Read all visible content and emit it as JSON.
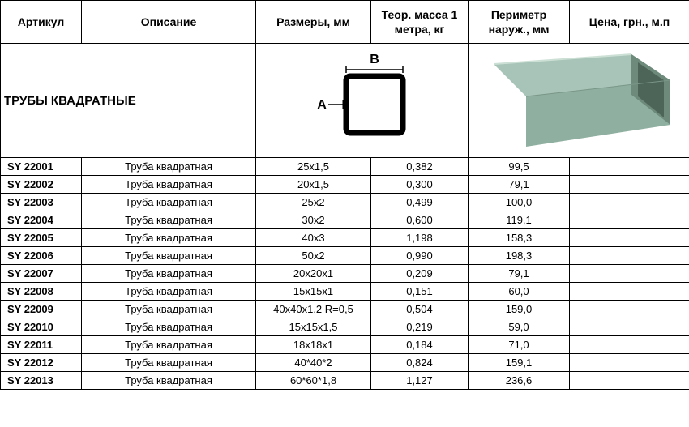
{
  "headers": {
    "article": "Артикул",
    "description": "Описание",
    "sizes": "Размеры, мм",
    "mass": "Теор. масса 1 метра, кг",
    "perimeter": "Периметр наруж., мм",
    "price": "Цена, грн., м.п"
  },
  "section": {
    "title": "ТРУБЫ КВАДРАТНЫЕ",
    "diagram": {
      "label_a": "A",
      "label_b": "B",
      "stroke_color": "#000000",
      "outer_size": 70,
      "wall": 8
    },
    "image": {
      "tube_color_top": "#a8c4b8",
      "tube_color_side": "#7a9688",
      "tube_color_front": "#8fb0a0"
    }
  },
  "rows": [
    {
      "article": "SY 22001",
      "desc": "Труба квадратная",
      "size": "25x1,5",
      "mass": "0,382",
      "perim": "99,5",
      "price": ""
    },
    {
      "article": "SY 22002",
      "desc": "Труба квадратная",
      "size": "20x1,5",
      "mass": "0,300",
      "perim": "79,1",
      "price": ""
    },
    {
      "article": "SY 22003",
      "desc": "Труба квадратная",
      "size": "25x2",
      "mass": "0,499",
      "perim": "100,0",
      "price": ""
    },
    {
      "article": "SY 22004",
      "desc": "Труба квадратная",
      "size": "30x2",
      "mass": "0,600",
      "perim": "119,1",
      "price": ""
    },
    {
      "article": "SY 22005",
      "desc": "Труба квадратная",
      "size": "40x3",
      "mass": "1,198",
      "perim": "158,3",
      "price": ""
    },
    {
      "article": "SY 22006",
      "desc": "Труба квадратная",
      "size": "50x2",
      "mass": "0,990",
      "perim": "198,3",
      "price": ""
    },
    {
      "article": "SY 22007",
      "desc": "Труба квадратная",
      "size": "20x20x1",
      "mass": "0,209",
      "perim": "79,1",
      "price": ""
    },
    {
      "article": "SY 22008",
      "desc": "Труба квадратная",
      "size": "15x15x1",
      "mass": "0,151",
      "perim": "60,0",
      "price": ""
    },
    {
      "article": "SY 22009",
      "desc": "Труба квадратная",
      "size": "40x40x1,2 R=0,5",
      "mass": "0,504",
      "perim": "159,0",
      "price": ""
    },
    {
      "article": "SY 22010",
      "desc": "Труба квадратная",
      "size": "15x15x1,5",
      "mass": "0,219",
      "perim": "59,0",
      "price": ""
    },
    {
      "article": "SY 22011",
      "desc": "Труба квадратная",
      "size": "18x18x1",
      "mass": "0,184",
      "perim": "71,0",
      "price": ""
    },
    {
      "article": "SY 22012",
      "desc": "Труба квадратная",
      "size": "40*40*2",
      "mass": "0,824",
      "perim": "159,1",
      "price": ""
    },
    {
      "article": "SY 22013",
      "desc": "Труба квадратная",
      "size": "60*60*1,8",
      "mass": "1,127",
      "perim": "236,6",
      "price": ""
    }
  ],
  "colors": {
    "border": "#000000",
    "background": "#ffffff",
    "text": "#000000"
  }
}
